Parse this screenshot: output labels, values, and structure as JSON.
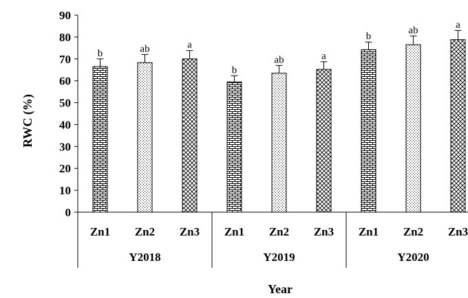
{
  "chart_data": {
    "type": "bar",
    "ylabel": "RWC (%)",
    "xlabel": "Year",
    "ylim": [
      0,
      90
    ],
    "yticks": [
      "0",
      "10",
      "20",
      "30",
      "40",
      "50",
      "60",
      "70",
      "80",
      "90"
    ],
    "groups": [
      {
        "name": "Y2018",
        "bars": [
          {
            "category": "Zn1",
            "value": 66.5,
            "error": 3.5,
            "letter": "b",
            "pattern": "brick"
          },
          {
            "category": "Zn2",
            "value": 68.3,
            "error": 3.7,
            "letter": "ab",
            "pattern": "dots"
          },
          {
            "category": "Zn3",
            "value": 70.0,
            "error": 3.8,
            "letter": "a",
            "pattern": "crosshatch"
          }
        ]
      },
      {
        "name": "Y2019",
        "bars": [
          {
            "category": "Zn1",
            "value": 59.5,
            "error": 2.8,
            "letter": "b",
            "pattern": "brick"
          },
          {
            "category": "Zn2",
            "value": 63.5,
            "error": 3.5,
            "letter": "ab",
            "pattern": "dots"
          },
          {
            "category": "Zn3",
            "value": 65.2,
            "error": 3.5,
            "letter": "a",
            "pattern": "crosshatch"
          }
        ]
      },
      {
        "name": "Y2020",
        "bars": [
          {
            "category": "Zn1",
            "value": 74.2,
            "error": 3.5,
            "letter": "b",
            "pattern": "brick"
          },
          {
            "category": "Zn2",
            "value": 76.5,
            "error": 4.0,
            "letter": "ab",
            "pattern": "dots"
          },
          {
            "category": "Zn3",
            "value": 78.8,
            "error": 4.2,
            "letter": "a",
            "pattern": "crosshatch"
          }
        ]
      }
    ],
    "bar_color": "#000000",
    "background": "#ffffff"
  }
}
